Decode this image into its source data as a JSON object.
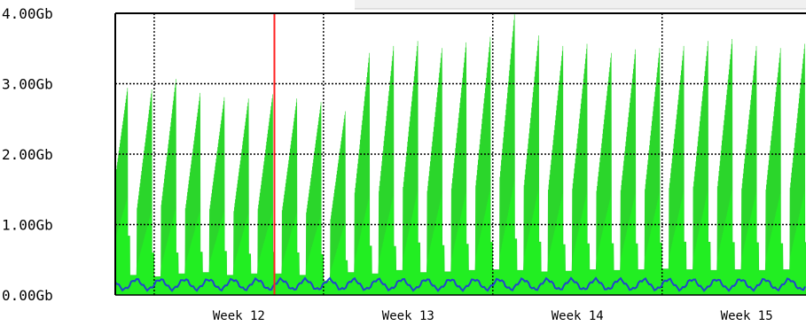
{
  "chart_data": {
    "type": "area",
    "title": "",
    "xlabel": "",
    "ylabel": "",
    "y_unit": "Gb",
    "ylim": [
      0,
      4
    ],
    "y_ticks": [
      {
        "value": 0,
        "label": "0.00Gb"
      },
      {
        "value": 1,
        "label": "1.00Gb"
      },
      {
        "value": 2,
        "label": "2.00Gb"
      },
      {
        "value": 3,
        "label": "3.00Gb"
      },
      {
        "value": 4,
        "label": "4.00Gb"
      }
    ],
    "x_range_weeks": [
      11.77,
      15.85
    ],
    "x_ticks": [
      {
        "value": 12.5,
        "label": "Week 12"
      },
      {
        "value": 13.5,
        "label": "Week 13"
      },
      {
        "value": 14.5,
        "label": "Week 14"
      },
      {
        "value": 15.5,
        "label": "Week 15"
      }
    ],
    "week_boundaries": [
      12,
      13,
      14,
      15
    ],
    "marker_x": 12.71,
    "grid": true,
    "series": [
      {
        "color": "#22ee22",
        "style": "filled",
        "daily_peaks": [
          2.95,
          2.93,
          3.08,
          2.88,
          2.82,
          2.8,
          2.86,
          2.8,
          2.75,
          2.62,
          3.45,
          3.55,
          3.62,
          3.52,
          3.6,
          3.68,
          4.0,
          3.7,
          3.55,
          3.58,
          3.45,
          3.5,
          3.52,
          3.55,
          3.62,
          3.65,
          3.55,
          3.52,
          3.58,
          3.62,
          3.55,
          3.65,
          3.7,
          3.45
        ],
        "daily_troughs": [
          0.55,
          0.28,
          0.26,
          0.3,
          0.32,
          0.28,
          0.3,
          0.3,
          0.28,
          0.2,
          0.32,
          0.3,
          0.35,
          0.32,
          0.33,
          0.35,
          0.36,
          0.35,
          0.33,
          0.34,
          0.36,
          0.35,
          0.36,
          0.37,
          0.36,
          0.35,
          0.36,
          0.35,
          0.36,
          0.35,
          0.38,
          0.4,
          0.42,
          0.4
        ]
      },
      {
        "color": "#2244cc",
        "style": "line",
        "baseline": 0.15,
        "daily_amplitude": 0.07
      }
    ]
  }
}
